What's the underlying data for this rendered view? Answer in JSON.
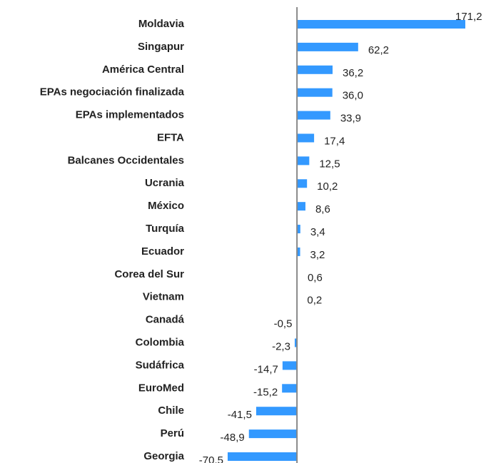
{
  "chart_data": {
    "type": "bar",
    "orientation": "horizontal",
    "color": "#3399ff",
    "categories": [
      "Moldavia",
      "Singapur",
      "América Central",
      "EPAs negociación finalizada",
      "EPAs implementados",
      "EFTA",
      "Balcanes Occidentales",
      "Ucrania",
      "México",
      "Turquía",
      "Ecuador",
      "Corea del Sur",
      "Vietnam",
      "Canadá",
      "Colombia",
      "Sudáfrica",
      "EuroMed",
      "Chile",
      "Perú",
      "Georgia"
    ],
    "values": [
      171.2,
      62.2,
      36.2,
      36.0,
      33.9,
      17.4,
      12.5,
      10.2,
      8.6,
      3.4,
      3.2,
      0.6,
      0.2,
      -0.5,
      -2.3,
      -14.7,
      -15.2,
      -41.5,
      -48.9,
      -70.5
    ],
    "value_labels": [
      "171,2",
      "62,2",
      "36,2",
      "36,0",
      "33,9",
      "17,4",
      "12,5",
      "10,2",
      "8,6",
      "3,4",
      "3,2",
      "0,6",
      "0,2",
      "-0,5",
      "-2,3",
      "-14,7",
      "-15,2",
      "-41,5",
      "-48,9",
      "-70,5"
    ]
  }
}
